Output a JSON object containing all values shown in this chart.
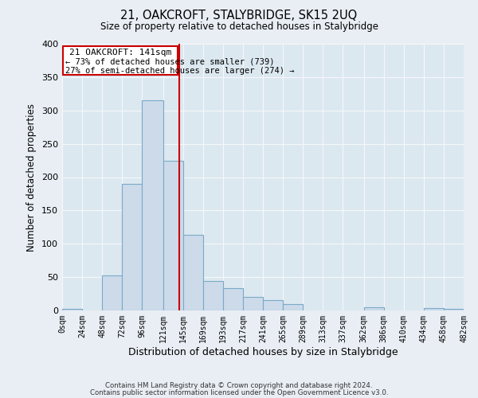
{
  "title": "21, OAKCROFT, STALYBRIDGE, SK15 2UQ",
  "subtitle": "Size of property relative to detached houses in Stalybridge",
  "xlabel": "Distribution of detached houses by size in Stalybridge",
  "ylabel": "Number of detached properties",
  "bin_edges": [
    0,
    24,
    48,
    72,
    96,
    121,
    145,
    169,
    193,
    217,
    241,
    265,
    289,
    313,
    337,
    362,
    386,
    410,
    434,
    458,
    482
  ],
  "counts": [
    2,
    0,
    52,
    190,
    315,
    225,
    113,
    44,
    33,
    20,
    15,
    9,
    0,
    0,
    0,
    5,
    0,
    0,
    4,
    2
  ],
  "bar_color": "#ccdaea",
  "bar_edge_color": "#7aaac8",
  "property_line_x": 141,
  "property_line_color": "#cc0000",
  "annotation_title": "21 OAKCROFT: 141sqm",
  "annotation_line1": "← 73% of detached houses are smaller (739)",
  "annotation_line2": "27% of semi-detached houses are larger (274) →",
  "annotation_box_edge_color": "#cc0000",
  "ylim": [
    0,
    400
  ],
  "yticks": [
    0,
    50,
    100,
    150,
    200,
    250,
    300,
    350,
    400
  ],
  "tick_labels": [
    "0sqm",
    "24sqm",
    "48sqm",
    "72sqm",
    "96sqm",
    "121sqm",
    "145sqm",
    "169sqm",
    "193sqm",
    "217sqm",
    "241sqm",
    "265sqm",
    "289sqm",
    "313sqm",
    "337sqm",
    "362sqm",
    "386sqm",
    "410sqm",
    "434sqm",
    "458sqm",
    "482sqm"
  ],
  "footer1": "Contains HM Land Registry data © Crown copyright and database right 2024.",
  "footer2": "Contains public sector information licensed under the Open Government Licence v3.0.",
  "bg_color": "#e8eef4",
  "plot_bg_color": "#dce8f0",
  "grid_color": "#f5f8fa"
}
